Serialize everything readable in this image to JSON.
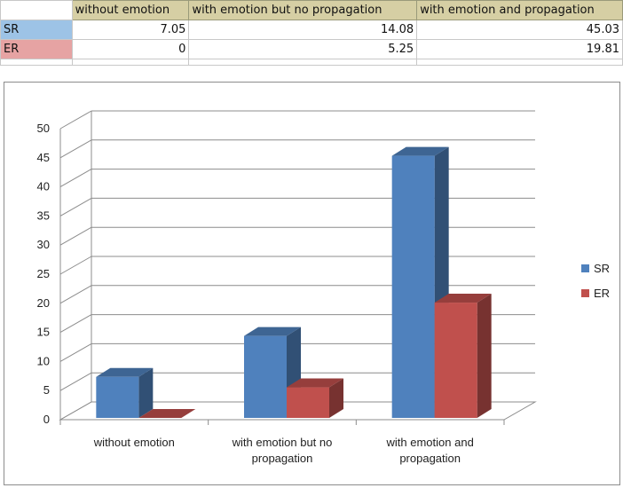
{
  "table": {
    "columns": [
      "without emotion",
      "with emotion but no propagation",
      "with emotion and propagation"
    ],
    "rows": [
      {
        "label": "SR",
        "values": [
          "7.05",
          "14.08",
          "45.03"
        ],
        "color": "#9dc3e6"
      },
      {
        "label": "ER",
        "values": [
          "0",
          "5.25",
          "19.81"
        ],
        "color": "#e6a3a3"
      }
    ]
  },
  "chart_data": {
    "type": "bar",
    "categories": [
      "without emotion",
      "with emotion but no propagation",
      "with emotion and propagation"
    ],
    "series": [
      {
        "name": "SR",
        "values": [
          7.05,
          14.08,
          45.03
        ],
        "color": "#4f81bd"
      },
      {
        "name": "ER",
        "values": [
          0,
          5.25,
          19.81
        ],
        "color": "#c0504d"
      }
    ],
    "ylim": [
      0,
      50
    ],
    "yticks": [
      "0",
      "5",
      "10",
      "15",
      "20",
      "25",
      "30",
      "35",
      "40",
      "45",
      "50"
    ],
    "grid": true,
    "legend_position": "right",
    "style": "3d-clustered-column"
  }
}
